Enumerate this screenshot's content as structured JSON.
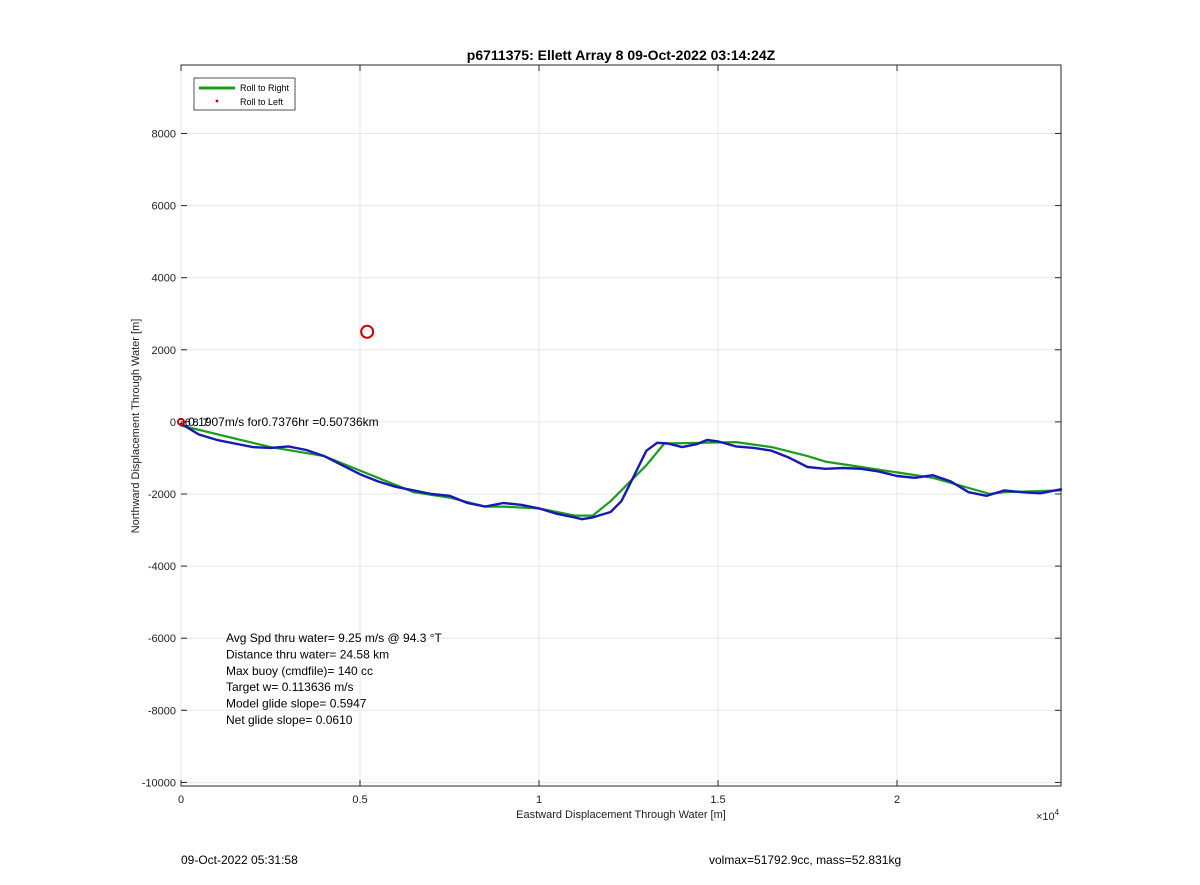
{
  "chart_data": {
    "type": "line",
    "title": "p6711375: Ellett Array 8 09-Oct-2022 03:14:24Z",
    "xlabel": "Eastward Displacement Through Water [m]",
    "ylabel": "Northward Displacement Through Water [m]",
    "x_exponent_label": "×10",
    "x_exponent_power": "4",
    "xlim": [
      0,
      24580
    ],
    "ylim": [
      -10100,
      9900
    ],
    "x_ticks": [
      0,
      5000,
      10000,
      15000,
      20000
    ],
    "x_tick_labels": [
      "0",
      "0.5",
      "1",
      "1.5",
      "2"
    ],
    "y_ticks": [
      8000,
      6000,
      4000,
      2000,
      0,
      -2000,
      -4000,
      -6000,
      -8000,
      -10000
    ],
    "y_tick_labels": [
      "8000",
      "6000",
      "4000",
      "2000",
      "0",
      "-2000",
      "-4000",
      "-6000",
      "-8000",
      "-10000"
    ],
    "grid": true,
    "legend_position": "top-left",
    "series": [
      {
        "name": "Roll to Right",
        "color": "#1a9e1a",
        "x": [
          0,
          2500,
          4000,
          6500,
          7500,
          8500,
          9000,
          10000,
          11000,
          11500,
          12000,
          12500,
          13000,
          13500,
          14500,
          15500,
          16500,
          17500,
          18000,
          19000,
          20000,
          21000,
          22600,
          23000,
          24580
        ],
        "y": [
          -100,
          -700,
          -950,
          -1950,
          -2100,
          -2350,
          -2350,
          -2400,
          -2600,
          -2600,
          -2200,
          -1700,
          -1200,
          -600,
          -580,
          -560,
          -700,
          -950,
          -1100,
          -1250,
          -1400,
          -1550,
          -2000,
          -1950,
          -1900
        ]
      },
      {
        "name": "Roll to Left",
        "color": "#cc0000",
        "x": [],
        "y": []
      },
      {
        "name": "",
        "color": "#1818b8",
        "x": [
          0,
          500,
          1000,
          1500,
          2000,
          2500,
          3000,
          3500,
          4000,
          4500,
          5000,
          5500,
          6000,
          6500,
          7000,
          7500,
          8000,
          8500,
          9000,
          9500,
          10000,
          10500,
          11000,
          11200,
          11500,
          12000,
          12300,
          12700,
          13000,
          13300,
          13600,
          14000,
          14400,
          14700,
          15000,
          15500,
          16000,
          16500,
          17000,
          17500,
          18000,
          18500,
          19000,
          19500,
          20000,
          20500,
          21000,
          21500,
          22000,
          22500,
          23000,
          23500,
          24000,
          24580
        ],
        "y": [
          -50,
          -350,
          -500,
          -600,
          -700,
          -720,
          -680,
          -780,
          -950,
          -1200,
          -1450,
          -1650,
          -1800,
          -1900,
          -2000,
          -2050,
          -2250,
          -2350,
          -2250,
          -2300,
          -2400,
          -2550,
          -2650,
          -2700,
          -2650,
          -2500,
          -2200,
          -1400,
          -800,
          -580,
          -600,
          -700,
          -620,
          -500,
          -540,
          -680,
          -720,
          -800,
          -1000,
          -1250,
          -1300,
          -1280,
          -1300,
          -1380,
          -1500,
          -1550,
          -1480,
          -1650,
          -1950,
          -2050,
          -1900,
          -1950,
          -1980,
          -1870
        ]
      }
    ],
    "markers": [
      {
        "type": "circle",
        "color": "#cc0000",
        "x": 5200,
        "y": 2500
      },
      {
        "type": "circle",
        "color": "#cc0000",
        "x": 0,
        "y": 0
      }
    ],
    "annotations": [
      {
        "text": "0.1907m/s for0.7376hr =0.50736km",
        "x": 200,
        "y": 0
      },
      {
        "text": "6",
        "x": 100,
        "y": 0
      },
      {
        "text": "8",
        "x": 320,
        "y": 0
      },
      {
        "text": "7",
        "x": 600,
        "y": 0
      }
    ],
    "stats_lines": [
      "Avg Spd thru water=  9.25 m/s @  94.3 °T",
      "Distance thru water= 24.58 km",
      "Max buoy (cmdfile)= 140 cc",
      "Target w= 0.113636 m/s",
      "Model glide slope= 0.5947",
      "Net glide slope= 0.0610"
    ]
  },
  "footer": {
    "left": "09-Oct-2022 05:31:58",
    "right": "volmax=51792.9cc, mass=52.831kg"
  }
}
